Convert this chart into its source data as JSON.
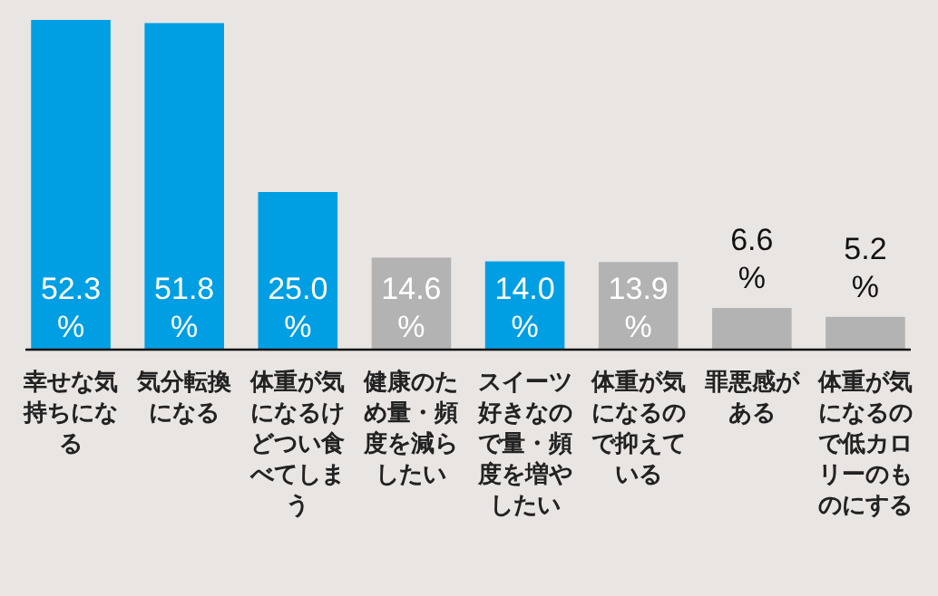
{
  "chart_data": {
    "type": "bar",
    "categories": [
      "幸せな気持ちになる",
      "気分転換になる",
      "体重が気になるけどつい食べてしまう",
      "健康のため量・頻度を減らしたい",
      "スイーツ好きなので量・頻度を増やしたい",
      "体重が気になるので抑えている",
      "罪悪感がある",
      "体重が気になるので低カロリーのものにする"
    ],
    "values": [
      52.3,
      51.8,
      25.0,
      14.6,
      14.0,
      13.9,
      6.6,
      5.2
    ],
    "colors": [
      "#009fe3",
      "#009fe3",
      "#009fe3",
      "#b3b3b3",
      "#009fe3",
      "#b3b3b3",
      "#b3b3b3",
      "#b3b3b3"
    ],
    "value_labels": [
      "52.3%",
      "51.8%",
      "25.0%",
      "14.6%",
      "14.0%",
      "13.9%",
      "6.6%",
      "5.2%"
    ]
  }
}
